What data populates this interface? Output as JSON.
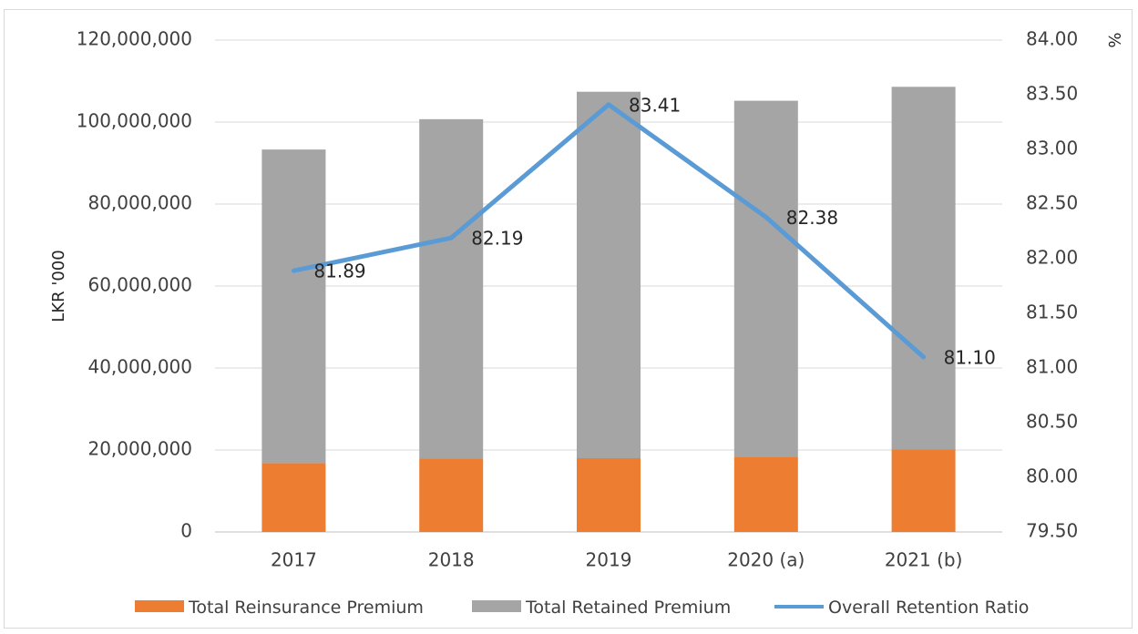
{
  "chart_data": {
    "type": "bar",
    "stacked": true,
    "categories": [
      "2017",
      "2018",
      "2019",
      "2020 (a)",
      "2021 (b)"
    ],
    "series": [
      {
        "name": "Total Reinsurance Premium",
        "type": "bar",
        "axis": "left",
        "color": "#ed7d31",
        "values": [
          16800000,
          17900000,
          18000000,
          18400000,
          20200000
        ]
      },
      {
        "name": "Total Retained Premium",
        "type": "bar",
        "axis": "left",
        "color": "#a5a5a5",
        "values": [
          76500000,
          82800000,
          89400000,
          86800000,
          88400000
        ]
      },
      {
        "name": "Overall Retention Ratio",
        "type": "line",
        "axis": "right",
        "color": "#5b9bd5",
        "values": [
          81.89,
          82.19,
          83.41,
          82.38,
          81.1
        ],
        "labels": [
          "81.89",
          "82.19",
          "83.41",
          "82.38",
          "81.10"
        ]
      }
    ],
    "y_left": {
      "label": "LKR '000",
      "range": [
        0,
        120000000
      ],
      "ticks": [
        "0",
        "20,000,000",
        "40,000,000",
        "60,000,000",
        "80,000,000",
        "100,000,000",
        "120,000,000"
      ]
    },
    "y_right": {
      "label": "%",
      "range": [
        79.5,
        84.0
      ],
      "ticks": [
        "79.50",
        "80.00",
        "80.50",
        "81.00",
        "81.50",
        "82.00",
        "82.50",
        "83.00",
        "83.50",
        "84.00"
      ]
    },
    "grid": true,
    "legend": "bottom"
  }
}
